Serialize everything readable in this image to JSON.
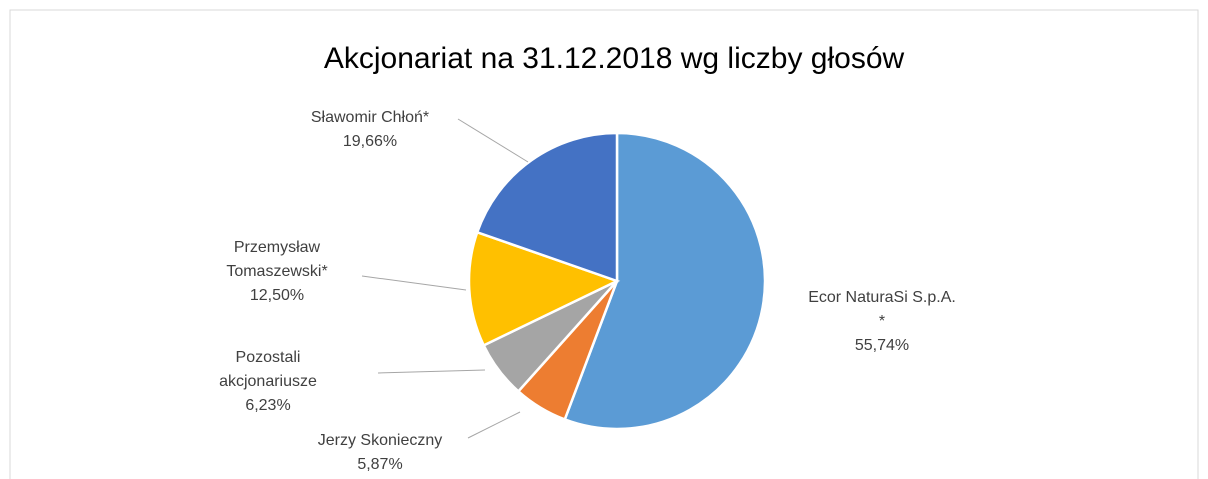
{
  "chart_data": {
    "type": "pie",
    "title": "Akcjonariat na 31.12.2018 wg liczby głosów",
    "categories": [
      "Ecor NaturaSi S.p.A. *",
      "Jerzy Skonieczny",
      "Pozostali akcjonariusze",
      "Przemysław Tomaszewski*",
      "Sławomir Chłoń*"
    ],
    "values": [
      55.74,
      5.87,
      6.23,
      12.5,
      19.66
    ],
    "value_labels": [
      "55,74%",
      "5,87%",
      "6,23%",
      "12,50%",
      "19,66%"
    ],
    "colors": [
      "#5b9bd5",
      "#ed7d31",
      "#a5a5a5",
      "#ffc000",
      "#4472c4"
    ]
  }
}
